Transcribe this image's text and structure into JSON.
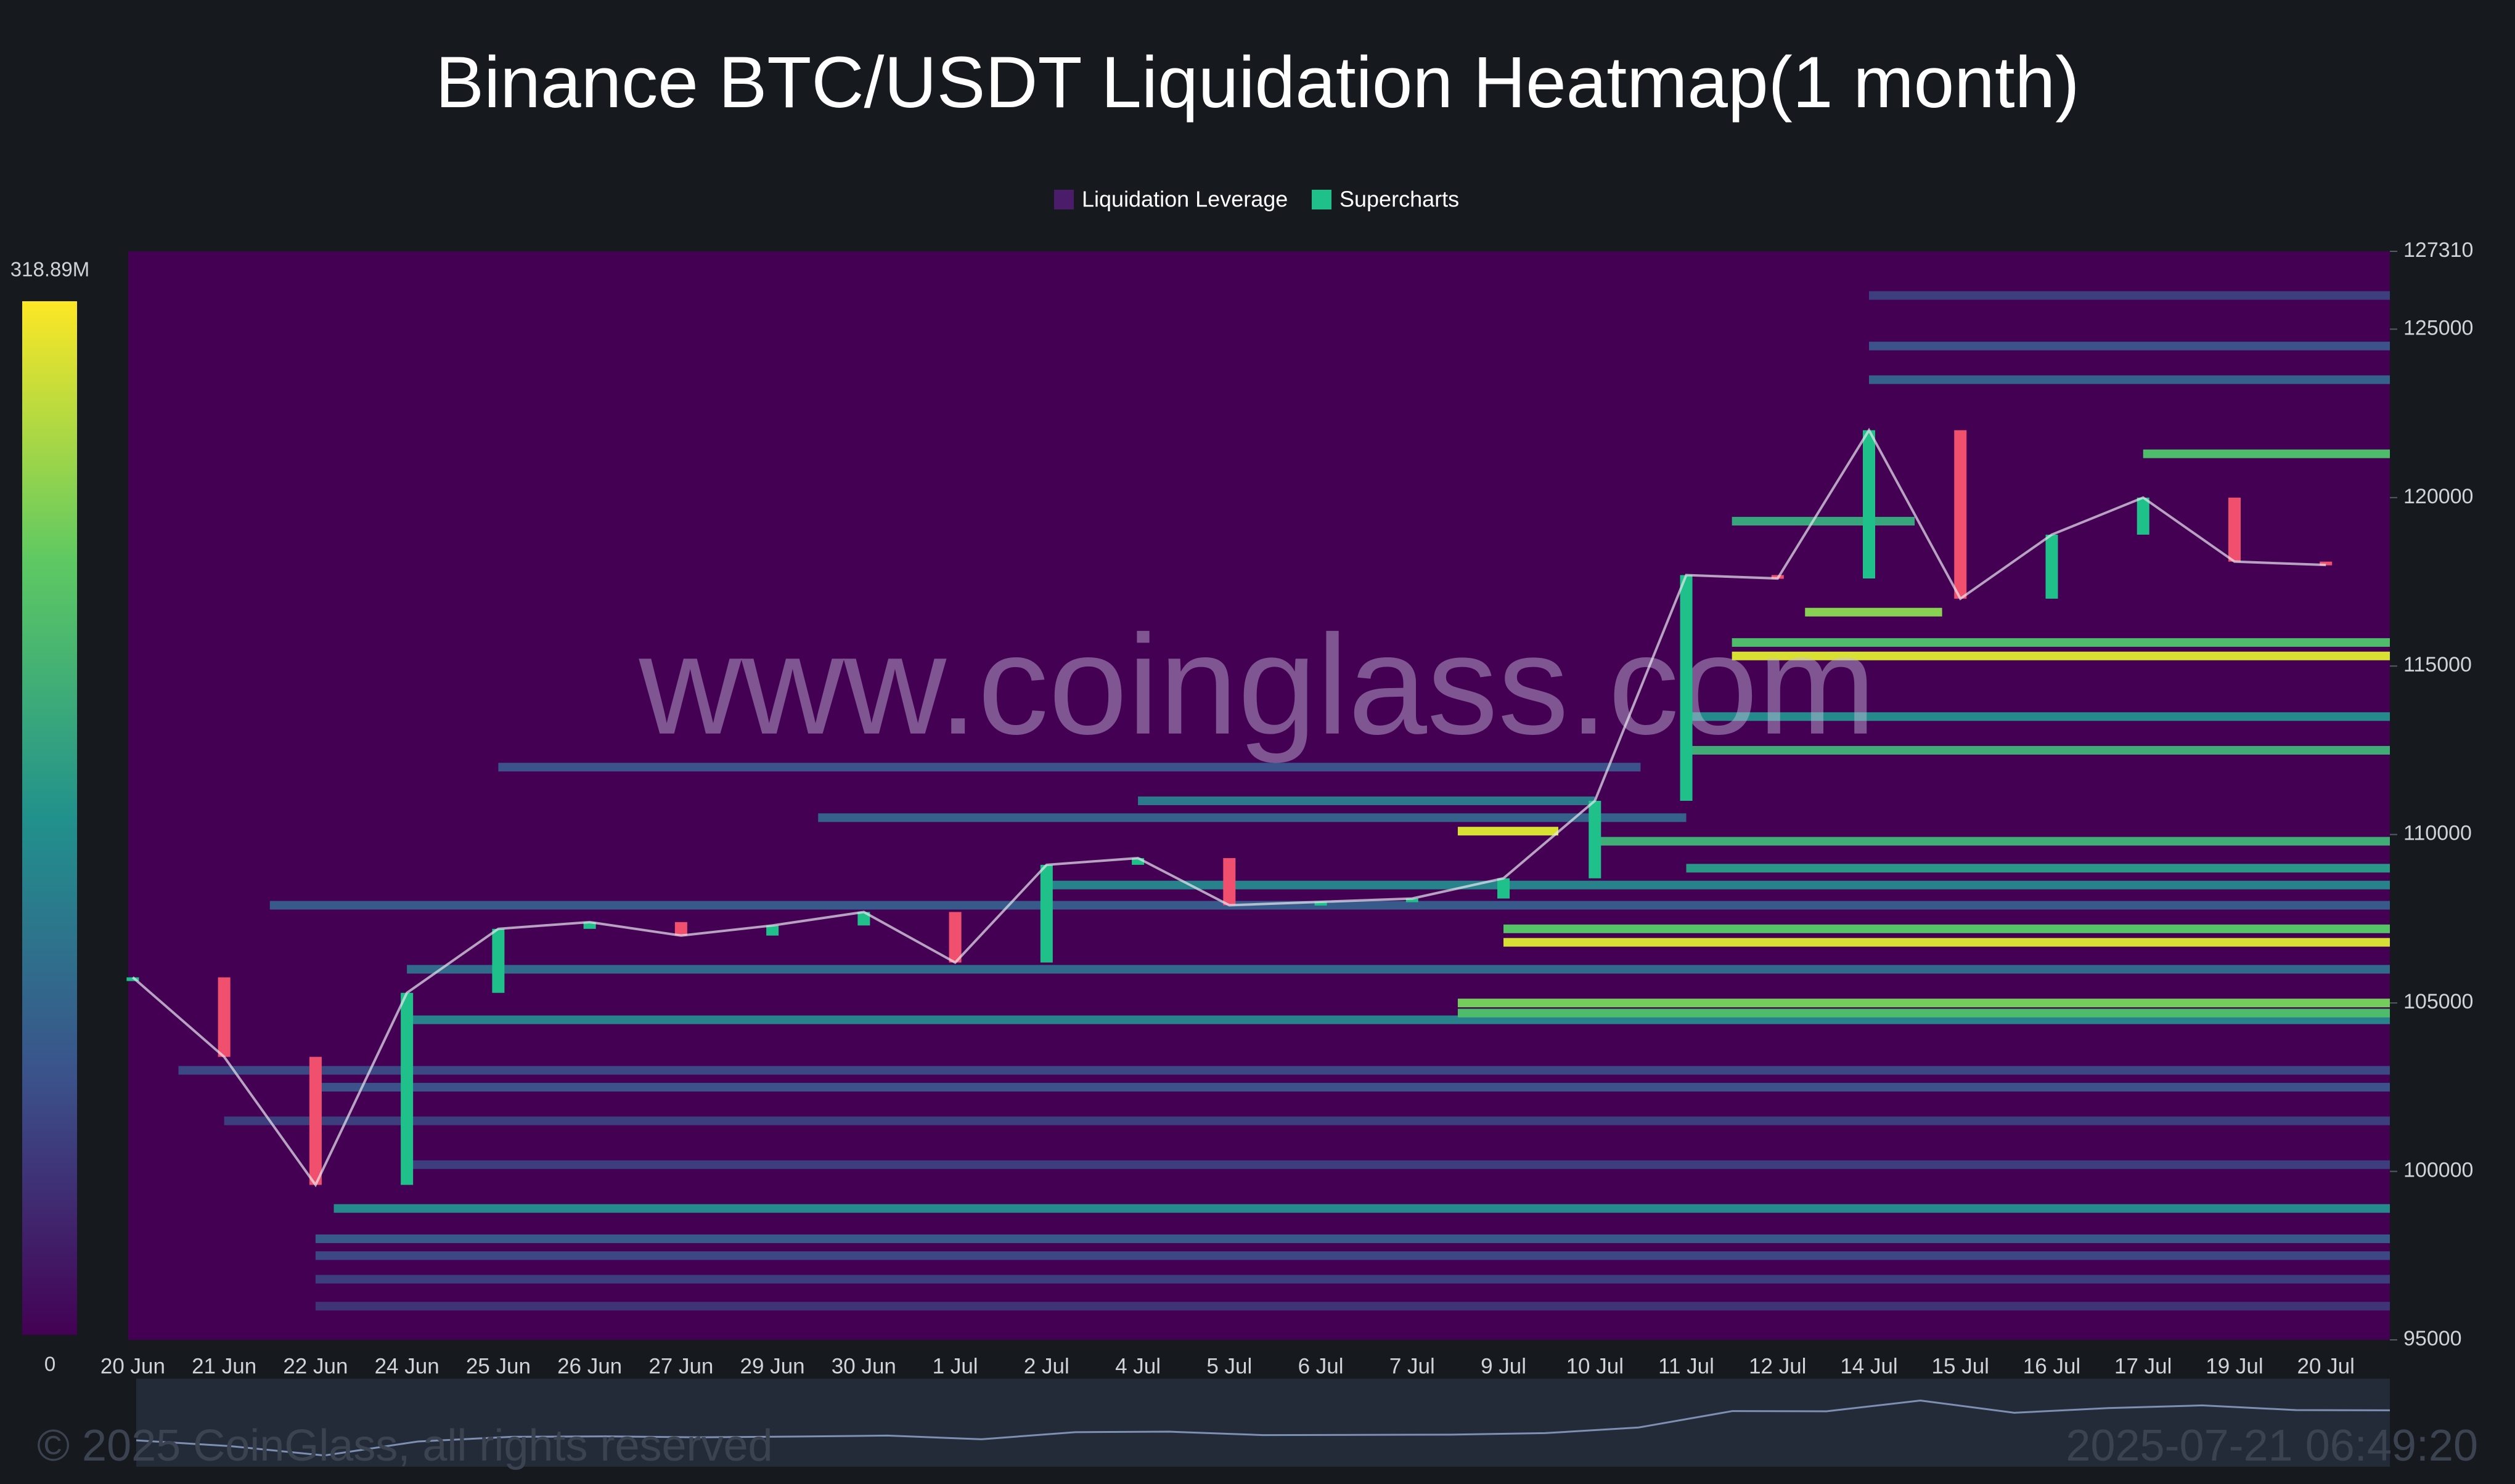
{
  "chart_data": {
    "type": "heatmap",
    "title": "Binance BTC/USDT Liquidation Heatmap(1 month)",
    "legend": [
      "Liquidation Leverage",
      "Supercharts"
    ],
    "legend_colors": [
      "#4a1c6a",
      "#1fc08a"
    ],
    "watermark": "www.coinglass.com",
    "copyright": "© 2025 CoinGlass, all rights reserved",
    "timestamp": "2025-07-21 06:49:20",
    "categories": [
      "20 Jun",
      "21 Jun",
      "22 Jun",
      "24 Jun",
      "25 Jun",
      "26 Jun",
      "27 Jun",
      "29 Jun",
      "30 Jun",
      "1 Jul",
      "2 Jul",
      "4 Jul",
      "5 Jul",
      "6 Jul",
      "7 Jul",
      "9 Jul",
      "10 Jul",
      "11 Jul",
      "12 Jul",
      "14 Jul",
      "15 Jul",
      "16 Jul",
      "17 Jul",
      "19 Jul",
      "20 Jul"
    ],
    "xlim": [
      -0.05,
      24.7
    ],
    "ylim": [
      95000,
      127310
    ],
    "yticks": [
      95000,
      100000,
      105000,
      110000,
      115000,
      120000,
      125000,
      127310
    ],
    "clim": [
      0,
      {
        "value": 318890000,
        "label": "318.89M"
      }
    ],
    "series": [
      {
        "name": "Supercharts",
        "up_color": "#1fc08a",
        "down_color": "#f0506e",
        "values": [
          105760,
          103400,
          99600,
          105300,
          107200,
          107400,
          107000,
          107300,
          107700,
          106200,
          109100,
          109300,
          107900,
          108000,
          108100,
          108700,
          111000,
          117700,
          117600,
          122000,
          117000,
          118900,
          120000,
          118100,
          118000
        ]
      }
    ],
    "bands": [
      {
        "price": 98900,
        "start": 2.2,
        "end": 24.7,
        "value": 150000000
      },
      {
        "price": 98000,
        "start": 2,
        "end": 24.7,
        "value": 90000000
      },
      {
        "price": 97500,
        "start": 2,
        "end": 24.7,
        "value": 70000000
      },
      {
        "price": 96800,
        "start": 2,
        "end": 24.7,
        "value": 60000000
      },
      {
        "price": 96000,
        "start": 2,
        "end": 24.7,
        "value": 50000000
      },
      {
        "price": 100200,
        "start": 3,
        "end": 24.7,
        "value": 60000000
      },
      {
        "price": 101500,
        "start": 1,
        "end": 24.7,
        "value": 60000000
      },
      {
        "price": 102500,
        "start": 2,
        "end": 24.7,
        "value": 80000000
      },
      {
        "price": 103000,
        "start": 0.5,
        "end": 24.7,
        "value": 70000000
      },
      {
        "price": 104500,
        "start": 3,
        "end": 24.7,
        "value": 140000000
      },
      {
        "price": 104700,
        "start": 14.5,
        "end": 24.7,
        "value": 220000000
      },
      {
        "price": 105000,
        "start": 14.5,
        "end": 24.7,
        "value": 250000000
      },
      {
        "price": 106000,
        "start": 3,
        "end": 24.7,
        "value": 110000000
      },
      {
        "price": 106800,
        "start": 15,
        "end": 24.7,
        "value": 300000000
      },
      {
        "price": 107200,
        "start": 15,
        "end": 24.7,
        "value": 230000000
      },
      {
        "price": 107900,
        "start": 1.5,
        "end": 24.7,
        "value": 90000000
      },
      {
        "price": 108500,
        "start": 10,
        "end": 24.7,
        "value": 140000000
      },
      {
        "price": 109000,
        "start": 17,
        "end": 24.7,
        "value": 170000000
      },
      {
        "price": 109800,
        "start": 16,
        "end": 24.7,
        "value": 200000000
      },
      {
        "price": 110100,
        "start": 14.5,
        "end": 15.6,
        "value": 300000000
      },
      {
        "price": 110500,
        "start": 7.5,
        "end": 17,
        "value": 100000000
      },
      {
        "price": 111000,
        "start": 11,
        "end": 16,
        "value": 130000000
      },
      {
        "price": 112000,
        "start": 4,
        "end": 16.5,
        "value": 80000000
      },
      {
        "price": 112500,
        "start": 17,
        "end": 24.7,
        "value": 200000000
      },
      {
        "price": 113500,
        "start": 17,
        "end": 24.7,
        "value": 150000000
      },
      {
        "price": 115300,
        "start": 17.5,
        "end": 24.7,
        "value": 300000000
      },
      {
        "price": 115700,
        "start": 17.5,
        "end": 24.7,
        "value": 220000000
      },
      {
        "price": 116600,
        "start": 18.3,
        "end": 19.8,
        "value": 260000000
      },
      {
        "price": 119300,
        "start": 17.5,
        "end": 19.5,
        "value": 190000000
      },
      {
        "price": 121300,
        "start": 22,
        "end": 24.7,
        "value": 220000000
      },
      {
        "price": 123500,
        "start": 19,
        "end": 24.7,
        "value": 100000000
      },
      {
        "price": 124500,
        "start": 19,
        "end": 24.7,
        "value": 80000000
      },
      {
        "price": 126000,
        "start": 19,
        "end": 24.7,
        "value": 60000000
      }
    ]
  }
}
